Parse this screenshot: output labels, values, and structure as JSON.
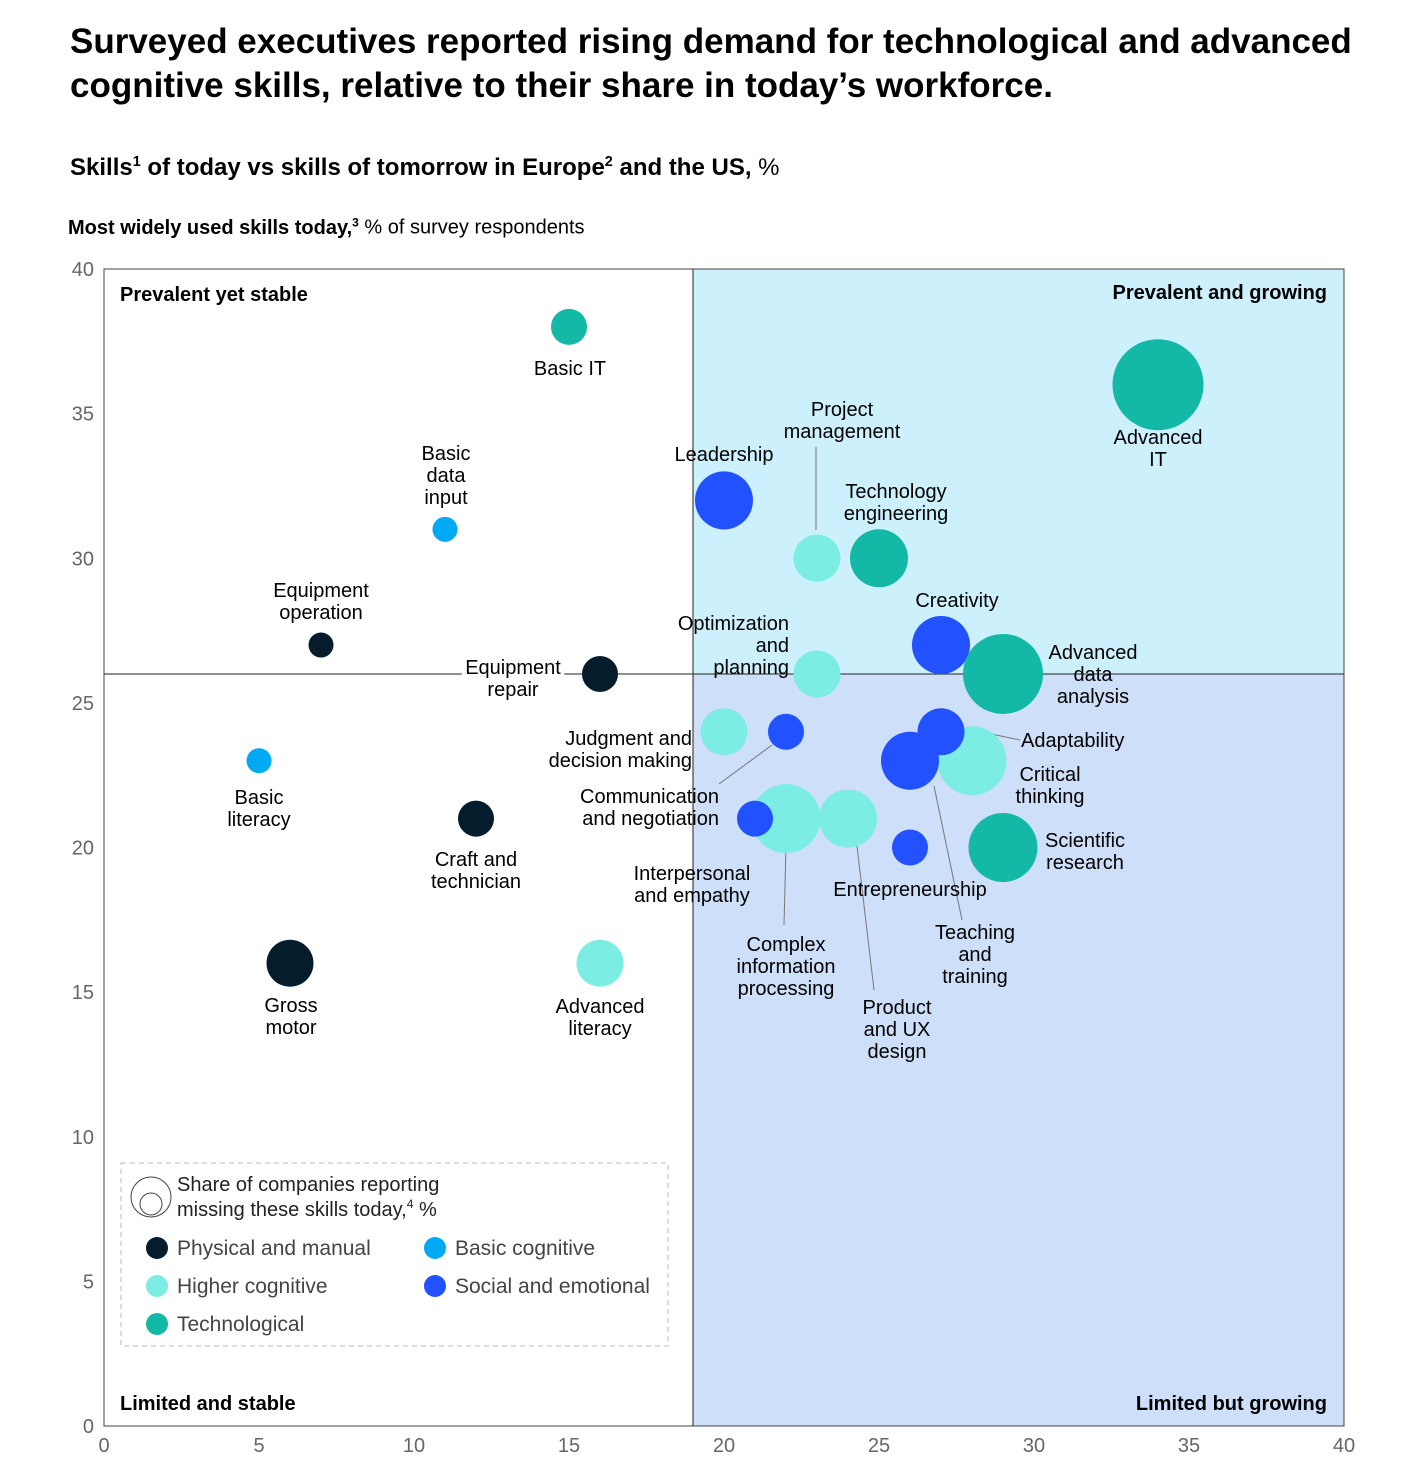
{
  "title": "Surveyed executives reported rising demand for technological and advanced cognitive skills, relative to their share in today’s workforce.",
  "subtitle": {
    "bold": "Skills",
    "sup1": "1",
    "bold2": " of today vs skills of tomorrow in Europe",
    "sup2": "2",
    "bold3": " and the US,",
    "unit": " %"
  },
  "ylabel": {
    "bold": "Most widely used skills today,",
    "sup": "3",
    "rest": " % of survey respondents"
  },
  "chart_data": {
    "type": "scatter",
    "subtype": "bubble",
    "xlim": [
      0,
      40
    ],
    "ylim": [
      0,
      40
    ],
    "x_ticks": [
      0,
      5,
      10,
      15,
      20,
      25,
      30,
      35,
      40
    ],
    "y_ticks": [
      0,
      5,
      10,
      15,
      20,
      25,
      30,
      35,
      40
    ],
    "x_divider": 19,
    "y_divider": 26,
    "quadrants": {
      "top_left": "Prevalent yet stable",
      "top_right": "Prevalent and growing",
      "bottom_left": "Limited and stable",
      "bottom_right": "Limited but growing"
    },
    "quadrant_colors": {
      "top_right": "#cdf0fd",
      "bottom_right": "#cddff9"
    },
    "category_colors": {
      "Physical and manual": "#051c2c",
      "Basic cognitive": "#00a9f4",
      "Higher cognitive": "#7bede3",
      "Social and emotional": "#2251ff",
      "Technological": "#14b8a6"
    },
    "legend": {
      "size_title": "Share of companies reporting missing these skills today,",
      "size_sup": "4",
      "size_unit": " %",
      "categories": [
        "Physical and manual",
        "Basic cognitive",
        "Higher cognitive",
        "Social and emotional",
        "Technological"
      ]
    },
    "points": [
      {
        "label": "Basic IT",
        "x": 15,
        "y": 38,
        "size": 2,
        "category": "Technological"
      },
      {
        "label": "Basic data input",
        "x": 11,
        "y": 31,
        "size": 1,
        "category": "Basic cognitive"
      },
      {
        "label": "Equipment operation",
        "x": 7,
        "y": 27,
        "size": 1,
        "category": "Physical and manual"
      },
      {
        "label": "Equipment repair",
        "x": 16,
        "y": 26,
        "size": 2,
        "category": "Physical and manual"
      },
      {
        "label": "Basic literacy",
        "x": 5,
        "y": 23,
        "size": 1,
        "category": "Basic cognitive"
      },
      {
        "label": "Craft and technician",
        "x": 12,
        "y": 21,
        "size": 2,
        "category": "Physical and manual"
      },
      {
        "label": "Gross motor",
        "x": 6,
        "y": 16,
        "size": 3,
        "category": "Physical and manual"
      },
      {
        "label": "Advanced literacy",
        "x": 16,
        "y": 16,
        "size": 3,
        "category": "Higher cognitive"
      },
      {
        "label": "Leadership",
        "x": 20,
        "y": 32,
        "size": 4,
        "category": "Social and emotional"
      },
      {
        "label": "Project management",
        "x": 23,
        "y": 30,
        "size": 3,
        "category": "Higher cognitive"
      },
      {
        "label": "Technology engineering",
        "x": 25,
        "y": 30,
        "size": 4,
        "category": "Technological"
      },
      {
        "label": "Advanced IT",
        "x": 34,
        "y": 36,
        "size": 7,
        "category": "Technological"
      },
      {
        "label": "Optimization and planning",
        "x": 23,
        "y": 26,
        "size": 3,
        "category": "Higher cognitive"
      },
      {
        "label": "Creativity",
        "x": 27,
        "y": 27,
        "size": 4,
        "category": "Social and emotional"
      },
      {
        "label": "Advanced data analysis",
        "x": 29,
        "y": 26,
        "size": 6,
        "category": "Technological"
      },
      {
        "label": "Judgment and decision making",
        "x": 20,
        "y": 24,
        "size": 3,
        "category": "Higher cognitive"
      },
      {
        "label": "Communication and negotiation",
        "x": 22,
        "y": 24,
        "size": 2,
        "category": "Social and emotional"
      },
      {
        "label": "Critical thinking",
        "x": 28,
        "y": 23,
        "size": 5,
        "category": "Higher cognitive"
      },
      {
        "label": "Teaching and training",
        "x": 26,
        "y": 23,
        "size": 4,
        "category": "Social and emotional"
      },
      {
        "label": "Adaptability",
        "x": 27,
        "y": 24,
        "size": 3,
        "category": "Social and emotional"
      },
      {
        "label": "Complex information processing",
        "x": 22,
        "y": 21,
        "size": 5,
        "category": "Higher cognitive"
      },
      {
        "label": "Interpersonal and empathy",
        "x": 21,
        "y": 21,
        "size": 2,
        "category": "Social and emotional"
      },
      {
        "label": "Product and UX design",
        "x": 24,
        "y": 21,
        "size": 4,
        "category": "Higher cognitive"
      },
      {
        "label": "Entrepreneurship",
        "x": 26,
        "y": 20,
        "size": 2,
        "category": "Social and emotional"
      },
      {
        "label": "Scientific research",
        "x": 29,
        "y": 20,
        "size": 5,
        "category": "Technological"
      }
    ]
  }
}
